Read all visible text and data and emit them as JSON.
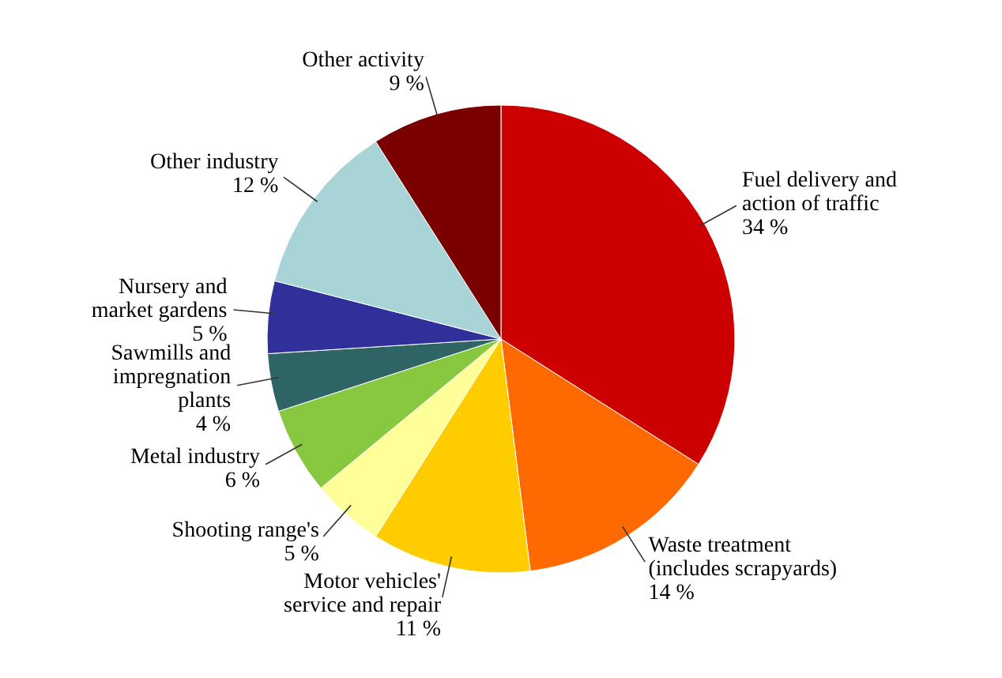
{
  "chart_data": {
    "type": "pie",
    "categories": [
      "Fuel delivery and\naction of traffic",
      "Waste treatment\n(includes scrapyards)",
      "Motor vehicles'\nservice and repair",
      "Shooting range's",
      "Metal industry",
      "Sawmills and\nimpregnation\nplants",
      "Nursery and\nmarket gardens",
      "Other industry",
      "Other activity"
    ],
    "values": [
      34,
      14,
      11,
      5,
      6,
      4,
      5,
      12,
      9
    ],
    "value_labels": [
      "34 %",
      "14 %",
      "11 %",
      "5 %",
      "6 %",
      "4 %",
      "5 %",
      "12 %",
      "9 %"
    ],
    "colors": [
      "#cc0000",
      "#ff6a00",
      "#ffcc00",
      "#ffff99",
      "#88c840",
      "#2e6464",
      "#30309a",
      "#a8d4d8",
      "#7a0000"
    ]
  }
}
